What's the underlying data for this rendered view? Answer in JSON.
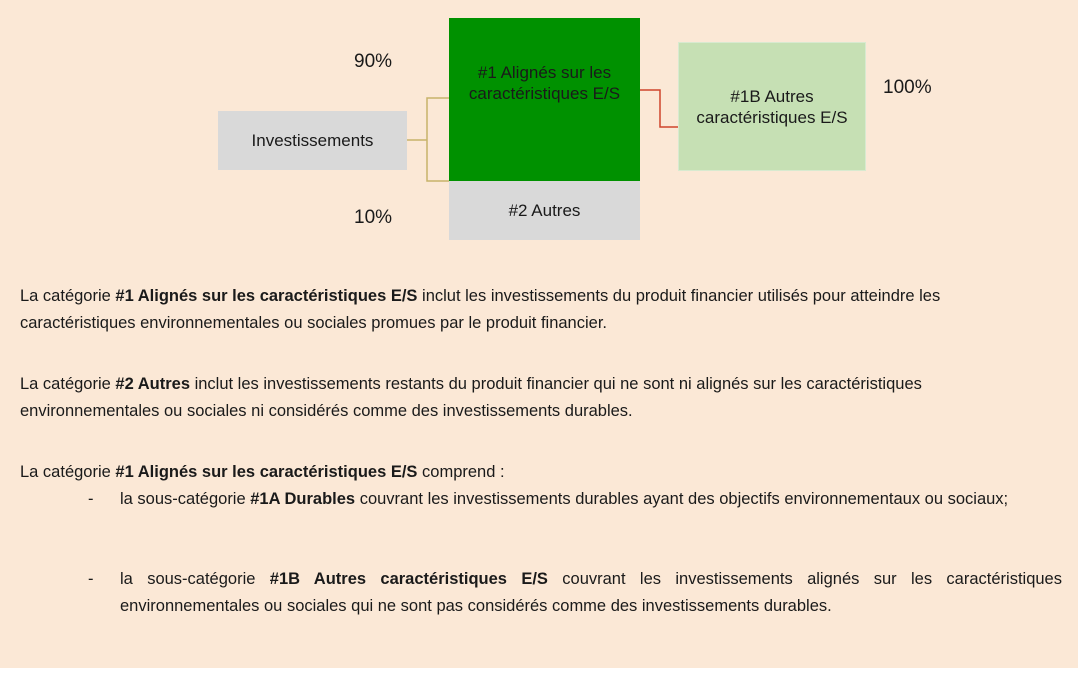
{
  "diagram": {
    "root": "Investissements",
    "nodes": [
      {
        "label": "#1 Alignés sur les caractéristiques E/S",
        "share": "90%"
      },
      {
        "label": "#2 Autres",
        "share": "10%"
      }
    ],
    "sub": {
      "label": "#1B Autres caractéristiques E/S",
      "share": "100%"
    }
  },
  "paragraphs": [
    [
      {
        "t": "La catégorie "
      },
      {
        "b": "#1 Alignés sur les caractéristiques E/S"
      },
      {
        "t": " inclut les investissements du produit financier utilisés pour atteindre les caractéristiques environnementales ou sociales promues par le produit financier."
      }
    ],
    [
      {
        "t": "La catégorie "
      },
      {
        "b": "#2 Autres"
      },
      {
        "t": " inclut les investissements restants du produit financier qui ne sont ni alignés sur les caractéristiques environnementales ou sociales ni considérés comme des investissements durables."
      }
    ],
    [
      {
        "t": "La catégorie "
      },
      {
        "b": "#1 Alignés sur les caractéristiques E/S"
      },
      {
        "t": " comprend :"
      }
    ]
  ],
  "list": {
    "marker": "-",
    "items": [
      [
        {
          "t": "la sous-catégorie "
        },
        {
          "b": "#1A Durables"
        },
        {
          "t": " couvrant les investissements durables ayant des objectifs environnementaux ou sociaux;"
        }
      ],
      [
        {
          "t": "la sous-catégorie "
        },
        {
          "b": "#1B Autres caractéristiques E/S"
        },
        {
          "t": " couvrant les investissements alignés sur les caractéristiques environnementales ou sociales qui ne sont pas considérés comme des investissements durables."
        }
      ]
    ]
  }
}
